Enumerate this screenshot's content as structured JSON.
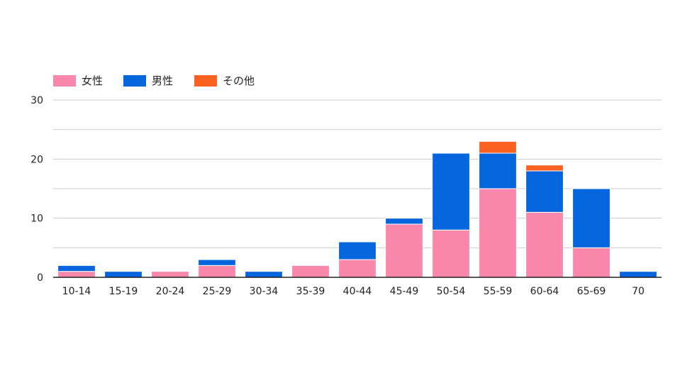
{
  "chart_data": {
    "type": "bar",
    "stacked": true,
    "title": "",
    "xlabel": "",
    "ylabel": "",
    "categories": [
      "10-14",
      "15-19",
      "20-24",
      "25-29",
      "30-34",
      "35-39",
      "40-44",
      "45-49",
      "50-54",
      "55-59",
      "60-64",
      "65-69",
      "70"
    ],
    "series": [
      {
        "name": "女性",
        "color": "#f987ab",
        "values": [
          1,
          0,
          1,
          2,
          0,
          2,
          3,
          9,
          8,
          15,
          11,
          5,
          0
        ]
      },
      {
        "name": "男性",
        "color": "#0565dc",
        "values": [
          1,
          1,
          0,
          1,
          1,
          0,
          3,
          1,
          13,
          6,
          7,
          10,
          1
        ]
      },
      {
        "name": "その他",
        "color": "#fb6221",
        "values": [
          0,
          0,
          0,
          0,
          0,
          0,
          0,
          0,
          0,
          2,
          1,
          0,
          0
        ]
      }
    ],
    "ylim": [
      0,
      30
    ],
    "yticks": [
      0,
      10,
      20,
      30
    ],
    "grid": true,
    "legend_position": "top-left"
  }
}
